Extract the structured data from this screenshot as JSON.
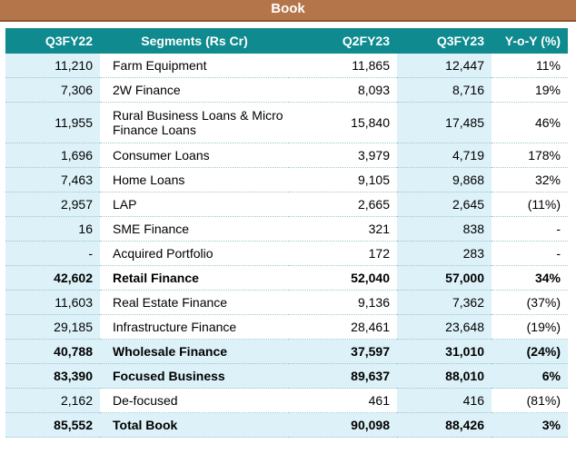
{
  "banner": {
    "title": "Book"
  },
  "table": {
    "headers": [
      "Q3FY22",
      "Segments (Rs Cr)",
      "Q2FY23",
      "Q3FY23",
      "Y-o-Y (%)"
    ],
    "rows": [
      {
        "q3fy22": "11,210",
        "segment": "Farm Equipment",
        "q2fy23": "11,865",
        "q3fy23": "12,447",
        "yoy": "11%"
      },
      {
        "q3fy22": "7,306",
        "segment": "2W Finance",
        "q2fy23": "8,093",
        "q3fy23": "8,716",
        "yoy": "19%"
      },
      {
        "q3fy22": "11,955",
        "segment": "Rural Business Loans & Micro Finance Loans",
        "q2fy23": "15,840",
        "q3fy23": "17,485",
        "yoy": "46%"
      },
      {
        "q3fy22": "1,696",
        "segment": "Consumer Loans",
        "q2fy23": "3,979",
        "q3fy23": "4,719",
        "yoy": "178%"
      },
      {
        "q3fy22": "7,463",
        "segment": "Home Loans",
        "q2fy23": "9,105",
        "q3fy23": "9,868",
        "yoy": "32%"
      },
      {
        "q3fy22": "2,957",
        "segment": "LAP",
        "q2fy23": "2,665",
        "q3fy23": "2,645",
        "yoy": "(11%)"
      },
      {
        "q3fy22": "16",
        "segment": "SME Finance",
        "q2fy23": "321",
        "q3fy23": "838",
        "yoy": "-"
      },
      {
        "q3fy22": "-",
        "segment": "Acquired Portfolio",
        "q2fy23": "172",
        "q3fy23": "283",
        "yoy": "-"
      },
      {
        "q3fy22": "42,602",
        "segment": "Retail Finance",
        "q2fy23": "52,040",
        "q3fy23": "57,000",
        "yoy": "34%"
      },
      {
        "q3fy22": "11,603",
        "segment": "Real Estate Finance",
        "q2fy23": "9,136",
        "q3fy23": "7,362",
        "yoy": "(37%)"
      },
      {
        "q3fy22": "29,185",
        "segment": "Infrastructure Finance",
        "q2fy23": "28,461",
        "q3fy23": "23,648",
        "yoy": "(19%)"
      },
      {
        "q3fy22": "40,788",
        "segment": "Wholesale Finance",
        "q2fy23": "37,597",
        "q3fy23": "31,010",
        "yoy": "(24%)"
      },
      {
        "q3fy22": "83,390",
        "segment": "Focused Business",
        "q2fy23": "89,637",
        "q3fy23": "88,010",
        "yoy": "6%"
      },
      {
        "q3fy22": "2,162",
        "segment": "De-focused",
        "q2fy23": "461",
        "q3fy23": "416",
        "yoy": "(81%)"
      },
      {
        "q3fy22": "85,552",
        "segment": "Total Book",
        "q2fy23": "90,098",
        "q3fy23": "88,426",
        "yoy": "3%"
      }
    ]
  },
  "colors": {
    "banner": "#b5754a",
    "header": "#0f8a8e",
    "highlight": "#dcf1f8"
  }
}
